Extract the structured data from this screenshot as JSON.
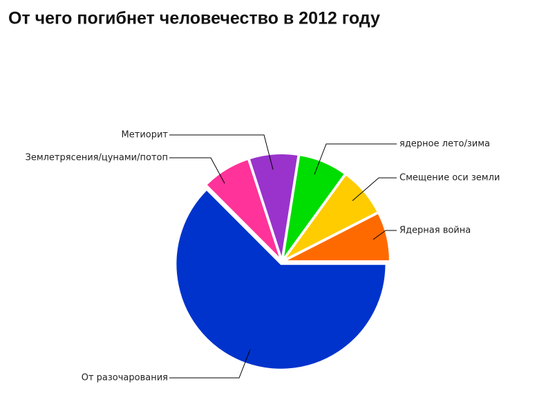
{
  "chart_data": {
    "type": "pie",
    "title": "От чего погибнет человечество в 2012 году",
    "categories": [
      "Ядерная война",
      "Смещение оси земли",
      "ядерное лето/зима",
      "Метиорит",
      "Землетрясения/цунами/потоп",
      "От разочарования"
    ],
    "values": [
      7.5,
      7.5,
      7.5,
      7.5,
      7.5,
      62.5
    ],
    "colors": [
      "#ff6a00",
      "#ffcc00",
      "#00dd00",
      "#9933cc",
      "#ff3399",
      "#0033cc"
    ]
  }
}
